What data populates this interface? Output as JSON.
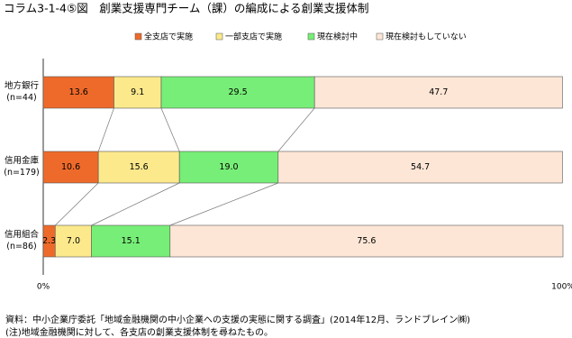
{
  "chart_data": {
    "type": "stacked-bar-horizontal",
    "title": "コラム3-1-4⑤図　創業支援専門チーム（課）の編成による創業支援体制",
    "categories": [
      [
        "地方銀行",
        "(n=44)"
      ],
      [
        "信用金庫",
        "(n=179)"
      ],
      [
        "信用組合",
        "(n=86)"
      ]
    ],
    "series": [
      {
        "name": "全支店で実施",
        "color": "#ee6a2a",
        "values": [
          13.6,
          10.6,
          2.3
        ],
        "value_labels": [
          "13.6",
          "10.6",
          "2.3"
        ]
      },
      {
        "name": "一部支店で実施",
        "color": "#fbe98c",
        "values": [
          9.1,
          15.6,
          7.0
        ],
        "value_labels": [
          "9.1",
          "15.6",
          "7.0"
        ]
      },
      {
        "name": "現在検討中",
        "color": "#77ee77",
        "values": [
          29.5,
          19.0,
          15.1
        ],
        "value_labels": [
          "29.5",
          "19.0",
          "15.1"
        ]
      },
      {
        "name": "現在検討もしていない",
        "color": "#fde6d6",
        "values": [
          47.7,
          54.7,
          75.6
        ],
        "value_labels": [
          "47.7",
          "54.7",
          "75.6"
        ]
      }
    ],
    "xlim": [
      0,
      100
    ],
    "xticks": [
      {
        "value": 0,
        "label": "0%"
      },
      {
        "value": 100,
        "label": "100%"
      }
    ],
    "notes": [
      "資料：中小企業庁委託「地域金融機関の中小企業への支援の実態に関する調査」(2014年12月、ランドブレイン㈱)",
      "(注)地域金融機関に対して、各支店の創業支援体制を尋ねたもの。"
    ]
  }
}
